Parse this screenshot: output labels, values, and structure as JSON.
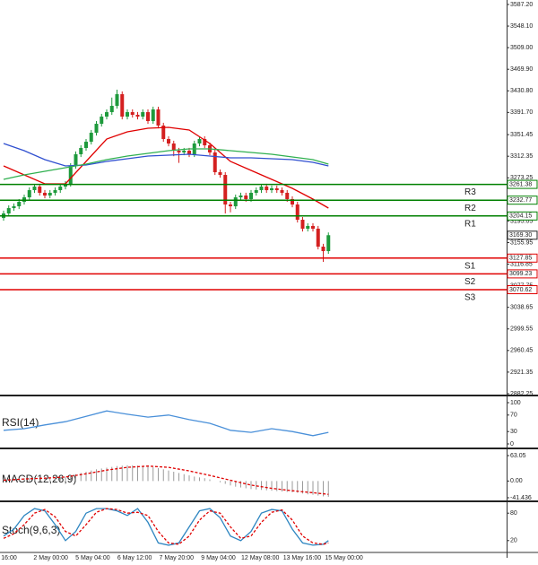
{
  "chart_data": [
    {
      "type": "candlestick",
      "up_color": "#1e9a3c",
      "down_color": "#d42020",
      "open": [
        3200.5,
        3208.7,
        3218.4,
        3221.7,
        3229.8,
        3237.9,
        3250.9,
        3257.4,
        3246.1,
        3241.2,
        3246.1,
        3250.9,
        3257.4,
        3262.3,
        3294.8,
        3315.9,
        3327.3,
        3338.6,
        3354.9,
        3371.1,
        3384.1,
        3392.2,
        3403.6,
        3424.7,
        3384.1,
        3392.2,
        3387.4,
        3384.1,
        3392.2,
        3376.0,
        3397.1,
        3367.9,
        3343.5,
        3335.4,
        3322.4,
        3319.2,
        3322.4,
        3315.9,
        3335.4,
        3343.5,
        3332.1,
        3319.2,
        3283.4,
        3278.5,
        3224.9,
        3221.7,
        3237.9,
        3241.2,
        3234.7,
        3246.1,
        3250.9,
        3257.4,
        3250.9,
        3254.2,
        3250.9,
        3246.1,
        3234.7,
        3224.9,
        3197.3,
        3181.1,
        3186.0,
        3181.1,
        3148.6,
        3140.5
      ],
      "high": [
        3213.7,
        3223.4,
        3226.7,
        3234.8,
        3242.9,
        3255.9,
        3262.4,
        3262.4,
        3251.1,
        3251.1,
        3255.9,
        3262.4,
        3267.3,
        3299.8,
        3320.9,
        3332.3,
        3343.6,
        3359.9,
        3376.1,
        3389.1,
        3397.2,
        3418.6,
        3432.9,
        3429.7,
        3397.2,
        3397.2,
        3392.4,
        3397.2,
        3397.2,
        3402.1,
        3402.1,
        3372.9,
        3348.5,
        3340.4,
        3327.4,
        3327.4,
        3327.4,
        3340.4,
        3348.5,
        3348.5,
        3337.1,
        3324.2,
        3288.4,
        3283.5,
        3229.9,
        3242.9,
        3246.2,
        3246.2,
        3251.1,
        3255.9,
        3262.4,
        3262.4,
        3259.2,
        3259.2,
        3255.9,
        3251.1,
        3239.7,
        3229.9,
        3202.3,
        3191.0,
        3191.0,
        3186.1,
        3153.6,
        3174.3
      ],
      "low": [
        3195.5,
        3203.7,
        3213.4,
        3216.7,
        3224.8,
        3232.9,
        3245.9,
        3241.1,
        3236.2,
        3236.2,
        3241.1,
        3245.9,
        3252.4,
        3257.3,
        3289.8,
        3310.9,
        3322.3,
        3333.6,
        3349.9,
        3366.1,
        3379.1,
        3387.2,
        3398.6,
        3379.1,
        3379.1,
        3382.4,
        3379.1,
        3379.1,
        3371.0,
        3371.0,
        3362.9,
        3338.5,
        3330.4,
        3312.4,
        3300.2,
        3314.2,
        3310.9,
        3310.9,
        3330.4,
        3327.1,
        3314.2,
        3278.4,
        3273.5,
        3208.7,
        3210.7,
        3216.7,
        3232.9,
        3229.7,
        3229.7,
        3241.1,
        3245.9,
        3245.9,
        3245.9,
        3245.9,
        3241.1,
        3229.7,
        3219.9,
        3192.3,
        3176.1,
        3176.1,
        3176.1,
        3143.6,
        3121.0,
        3135.5
      ],
      "close": [
        3208.7,
        3218.4,
        3221.7,
        3229.8,
        3237.9,
        3250.9,
        3257.4,
        3246.1,
        3241.2,
        3246.1,
        3250.9,
        3257.4,
        3262.3,
        3294.8,
        3315.9,
        3327.3,
        3338.6,
        3354.9,
        3371.1,
        3384.1,
        3392.2,
        3403.6,
        3424.7,
        3384.1,
        3392.2,
        3387.4,
        3384.1,
        3392.2,
        3376.0,
        3397.1,
        3367.9,
        3343.5,
        3335.4,
        3322.4,
        3319.2,
        3322.4,
        3315.9,
        3335.4,
        3343.5,
        3332.1,
        3319.2,
        3283.4,
        3278.5,
        3224.9,
        3221.7,
        3237.9,
        3241.2,
        3234.7,
        3246.1,
        3250.9,
        3257.4,
        3250.9,
        3254.2,
        3250.9,
        3246.1,
        3234.7,
        3224.9,
        3197.3,
        3181.1,
        3186.0,
        3181.1,
        3148.6,
        3140.5,
        3169.3
      ],
      "ylim": [
        2880.6,
        3595.3
      ],
      "yticks": [
        {
          "value": 3587.2,
          "label": "3587.20"
        },
        {
          "value": 3548.1,
          "label": "3548.10"
        },
        {
          "value": 3509,
          "label": "3509.00"
        },
        {
          "value": 3469.9,
          "label": "3469.90"
        },
        {
          "value": 3430.8,
          "label": "3430.80"
        },
        {
          "value": 3391.7,
          "label": "3391.70"
        },
        3351.45,
        3312.35,
        3273.25,
        3234.15,
        3195.05,
        3155.95,
        3116.85,
        3077.75,
        3038.65,
        2999.55,
        2960.45,
        2921.35,
        2882.25
      ],
      "x_labels": [
        "16:00",
        "2 May 00:00",
        "5 May 04:00",
        "6 May 12:00",
        "7 May 20:00",
        "9 May 04:00",
        "12 May 08:00",
        "13 May 16:00",
        "15 May 00:00"
      ],
      "series": [
        {
          "color": "#e00000",
          "x": [
            0,
            4,
            8,
            12,
            16,
            20,
            24,
            28,
            32,
            36,
            40,
            44,
            48,
            52,
            56,
            60,
            63
          ],
          "values": [
            3294.8,
            3278.6,
            3262.3,
            3262.3,
            3302.9,
            3343.5,
            3356.5,
            3363.0,
            3364.7,
            3359.8,
            3335.4,
            3302.9,
            3286.7,
            3270.5,
            3254.2,
            3234.7,
            3218.5
          ]
        },
        {
          "color": "#3050d0",
          "x": [
            0,
            4,
            8,
            12,
            16,
            20,
            24,
            28,
            32,
            36,
            40,
            44,
            48,
            52,
            56,
            60,
            63
          ],
          "values": [
            3335.4,
            3322.4,
            3306.2,
            3294.8,
            3296.4,
            3302.9,
            3307.8,
            3312.7,
            3314.3,
            3315.9,
            3312.7,
            3309.4,
            3309.4,
            3307.8,
            3306.2,
            3301.3,
            3294.8
          ]
        },
        {
          "color": "#30b050",
          "x": [
            0,
            4,
            8,
            12,
            16,
            20,
            24,
            28,
            32,
            36,
            40,
            44,
            48,
            52,
            56,
            60,
            63
          ],
          "values": [
            3270.5,
            3278.6,
            3285.1,
            3291.6,
            3298.0,
            3306.2,
            3312.7,
            3317.5,
            3322.4,
            3325.7,
            3325.7,
            3322.4,
            3319.2,
            3315.9,
            3311.0,
            3306.2,
            3298.0
          ]
        }
      ],
      "levels": [
        {
          "name": "R3",
          "value": 3261.38,
          "color": "#008000"
        },
        {
          "name": "R2",
          "value": 3232.77,
          "color": "#008000"
        },
        {
          "name": "R1",
          "value": 3204.15,
          "color": "#008000"
        },
        {
          "name": "S1",
          "value": 3127.85,
          "color": "#e00000"
        },
        {
          "name": "S2",
          "value": 3099.23,
          "color": "#e00000"
        },
        {
          "name": "S3",
          "value": 3070.62,
          "color": "#e00000"
        }
      ],
      "current": {
        "value": 3169.3,
        "label": "3169.30"
      }
    },
    {
      "type": "line",
      "title": "RSI(14)",
      "ylim": [
        0,
        100
      ],
      "yticks": [
        100,
        70,
        30,
        0
      ],
      "series": [
        {
          "color": "#4a90d9",
          "x": [
            0,
            4,
            8,
            12,
            16,
            20,
            24,
            28,
            32,
            36,
            40,
            44,
            48,
            52,
            56,
            60,
            63
          ],
          "values": [
            33,
            37,
            46,
            54,
            67,
            80,
            72,
            65,
            70,
            59,
            50,
            33,
            28,
            37,
            30,
            20,
            28
          ]
        }
      ]
    },
    {
      "type": "macd",
      "title": "MACD(12,26,9)",
      "ylim": [
        -41.436,
        63.05
      ],
      "yticks": [
        63.05,
        {
          "value": 0,
          "label": "0.00"
        },
        -41.436
      ],
      "hist_color": "#9a9a9a",
      "histogram": [
        5,
        6,
        6,
        7,
        7,
        8,
        8,
        8,
        9,
        9,
        10,
        10,
        11,
        14,
        17,
        20,
        23,
        26,
        29,
        31,
        33,
        35,
        37,
        38,
        39,
        39,
        38,
        37,
        36,
        34,
        32,
        29,
        26,
        23,
        20,
        17,
        14,
        11,
        9,
        7,
        4,
        0,
        -3,
        -7,
        -11,
        -14,
        -16,
        -18,
        -20,
        -21,
        -22,
        -23,
        -24,
        -25,
        -26,
        -27,
        -28,
        -29,
        -31,
        -33,
        -34,
        -36,
        -38,
        -39
      ],
      "series": [
        {
          "color": "#e00000",
          "dash": true,
          "x": [
            0,
            4,
            8,
            12,
            16,
            20,
            24,
            28,
            32,
            36,
            40,
            44,
            48,
            52,
            56,
            60,
            63
          ],
          "values": [
            2,
            5,
            7,
            10,
            18,
            27,
            34,
            37,
            34,
            25,
            14,
            2,
            -10,
            -18,
            -24,
            -29,
            -33
          ]
        }
      ]
    },
    {
      "type": "line",
      "title": "Stoch(9,6,3)",
      "ylim": [
        0,
        100
      ],
      "yticks": [
        80,
        20
      ],
      "series": [
        {
          "color": "#2e86c1",
          "x": [
            0,
            2,
            4,
            6,
            8,
            10,
            12,
            14,
            16,
            18,
            20,
            22,
            24,
            26,
            28,
            30,
            32,
            34,
            36,
            38,
            40,
            42,
            44,
            46,
            48,
            50,
            52,
            54,
            56,
            58,
            60,
            62,
            63
          ],
          "values": [
            30,
            45,
            75,
            90,
            85,
            55,
            20,
            40,
            80,
            90,
            90,
            85,
            75,
            90,
            60,
            15,
            10,
            15,
            50,
            85,
            90,
            70,
            30,
            20,
            40,
            80,
            88,
            85,
            45,
            15,
            10,
            12,
            20
          ]
        },
        {
          "color": "#e00000",
          "dash": true,
          "x": [
            0,
            2,
            4,
            6,
            8,
            10,
            12,
            14,
            16,
            18,
            20,
            22,
            24,
            26,
            28,
            30,
            32,
            34,
            36,
            38,
            40,
            42,
            44,
            46,
            48,
            50,
            52,
            54,
            56,
            58,
            60,
            62,
            63
          ],
          "values": [
            25,
            35,
            55,
            80,
            88,
            72,
            40,
            30,
            55,
            82,
            90,
            88,
            80,
            82,
            75,
            40,
            15,
            12,
            30,
            65,
            85,
            80,
            50,
            25,
            30,
            60,
            82,
            87,
            65,
            30,
            15,
            12,
            15
          ]
        }
      ]
    }
  ]
}
